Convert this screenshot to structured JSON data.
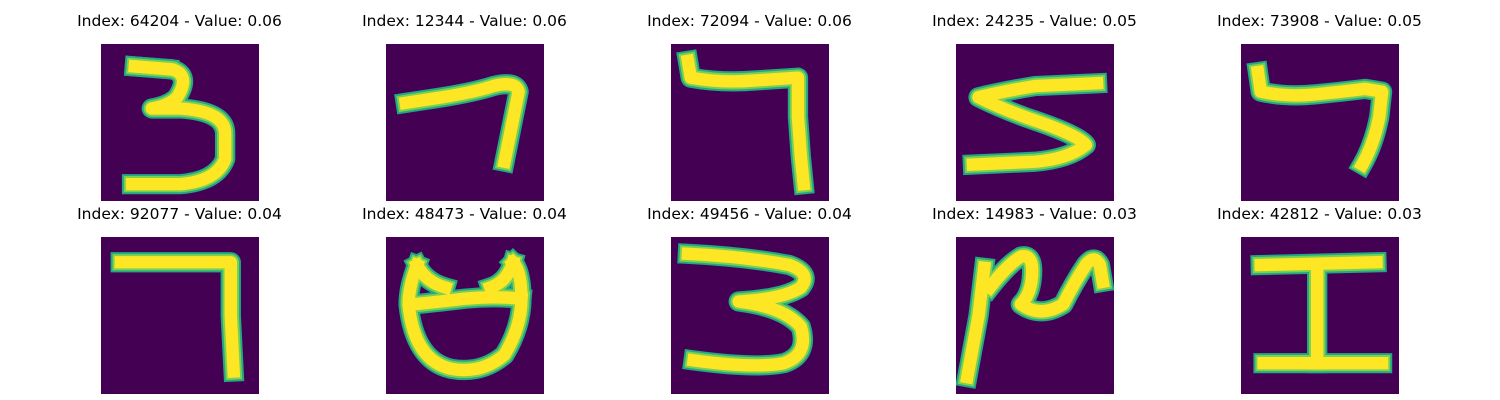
{
  "colors": {
    "background": "#440154",
    "stroke_core": "#fde725",
    "stroke_edge": "#22a884",
    "stroke_mid": "#7ad151"
  },
  "panels": [
    {
      "title": "Index: 64204 - Value: 0.06",
      "index": 64204,
      "value": 0.06,
      "glyph": "3"
    },
    {
      "title": "Index: 12344 - Value: 0.06",
      "index": 12344,
      "value": 0.06,
      "glyph": "7"
    },
    {
      "title": "Index: 72094 - Value: 0.06",
      "index": 72094,
      "value": 0.06,
      "glyph": "7"
    },
    {
      "title": "Index: 24235 - Value: 0.05",
      "index": 24235,
      "value": 0.05,
      "glyph": "5"
    },
    {
      "title": "Index: 73908 - Value: 0.05",
      "index": 73908,
      "value": 0.05,
      "glyph": "7"
    },
    {
      "title": "Index: 92077 - Value: 0.04",
      "index": 92077,
      "value": 0.04,
      "glyph": "7"
    },
    {
      "title": "Index: 48473 - Value: 0.04",
      "index": 48473,
      "value": 0.04,
      "glyph": "8"
    },
    {
      "title": "Index: 49456 - Value: 0.04",
      "index": 49456,
      "value": 0.04,
      "glyph": "3"
    },
    {
      "title": "Index: 14983 - Value: 0.03",
      "index": 14983,
      "value": 0.03,
      "glyph": "2"
    },
    {
      "title": "Index: 42812 - Value: 0.03",
      "index": 42812,
      "value": 0.03,
      "glyph": "1"
    }
  ]
}
